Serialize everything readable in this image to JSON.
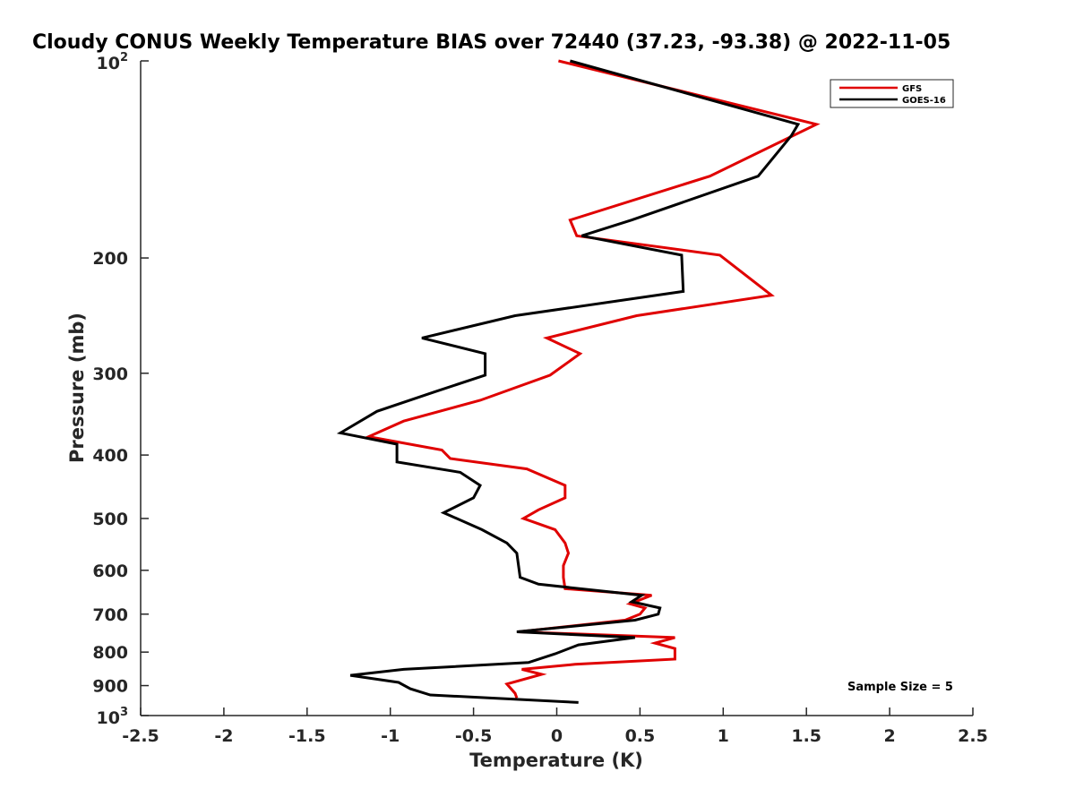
{
  "chart_data": {
    "type": "line",
    "title": "Cloudy CONUS Weekly Temperature BIAS over 72440 (37.23, -93.38) @ 2022-11-05",
    "xlabel": "Temperature (K)",
    "ylabel": "Pressure (mb)",
    "xlim": [
      -2.5,
      2.5
    ],
    "ylim": [
      100,
      1000
    ],
    "y_scale": "log",
    "y_reversed": true,
    "x_ticks": [
      -2.5,
      -2,
      -1.5,
      -1,
      -0.5,
      0,
      0.5,
      1,
      1.5,
      2,
      2.5
    ],
    "x_tick_labels": [
      "-2.5",
      "-2",
      "-1.5",
      "-1",
      "-0.5",
      "0",
      "0.5",
      "1",
      "1.5",
      "2",
      "2.5"
    ],
    "y_ticks": [
      200,
      300,
      400,
      500,
      600,
      700,
      800,
      900
    ],
    "y_tick_labels": [
      "200",
      "300",
      "400",
      "500",
      "600",
      "700",
      "800",
      "900"
    ],
    "y_tick_min_label": {
      "base": "10",
      "exp": "2"
    },
    "y_tick_max_label": {
      "base": "10",
      "exp": "3"
    },
    "legend_position": "top-right",
    "annotation": "Sample Size = 5",
    "grid": false,
    "series": [
      {
        "name": "GFS",
        "color": "#e00000",
        "points": [
          [
            0.01,
            100
          ],
          [
            1.56,
            125
          ],
          [
            0.92,
            150
          ],
          [
            0.08,
            175
          ],
          [
            0.12,
            185
          ],
          [
            0.98,
            198
          ],
          [
            1.29,
            228
          ],
          [
            0.48,
            245
          ],
          [
            -0.06,
            265
          ],
          [
            0.14,
            280
          ],
          [
            -0.04,
            302
          ],
          [
            -0.46,
            330
          ],
          [
            -0.92,
            355
          ],
          [
            -1.13,
            375
          ],
          [
            -0.69,
            393
          ],
          [
            -0.64,
            405
          ],
          [
            -0.18,
            420
          ],
          [
            0.05,
            445
          ],
          [
            0.05,
            465
          ],
          [
            -0.11,
            485
          ],
          [
            -0.2,
            500
          ],
          [
            -0.01,
            520
          ],
          [
            0.05,
            545
          ],
          [
            0.07,
            565
          ],
          [
            0.04,
            590
          ],
          [
            0.04,
            615
          ],
          [
            0.05,
            640
          ],
          [
            0.57,
            655
          ],
          [
            0.44,
            675
          ],
          [
            0.53,
            685
          ],
          [
            0.5,
            700
          ],
          [
            0.41,
            715
          ],
          [
            -0.23,
            745
          ],
          [
            0.71,
            760
          ],
          [
            0.59,
            775
          ],
          [
            0.71,
            790
          ],
          [
            0.71,
            820
          ],
          [
            0.11,
            835
          ],
          [
            -0.21,
            850
          ],
          [
            -0.09,
            865
          ],
          [
            -0.3,
            895
          ],
          [
            -0.25,
            925
          ],
          [
            -0.24,
            940
          ]
        ]
      },
      {
        "name": "GOES-16",
        "color": "#000000",
        "points": [
          [
            0.08,
            100
          ],
          [
            1.45,
            125
          ],
          [
            1.41,
            130
          ],
          [
            1.21,
            150
          ],
          [
            0.45,
            175
          ],
          [
            0.15,
            185
          ],
          [
            0.75,
            198
          ],
          [
            0.76,
            225
          ],
          [
            -0.25,
            245
          ],
          [
            -0.81,
            265
          ],
          [
            -0.43,
            280
          ],
          [
            -0.43,
            302
          ],
          [
            -0.73,
            320
          ],
          [
            -1.08,
            343
          ],
          [
            -1.3,
            370
          ],
          [
            -0.96,
            385
          ],
          [
            -0.96,
            410
          ],
          [
            -0.58,
            425
          ],
          [
            -0.46,
            445
          ],
          [
            -0.5,
            465
          ],
          [
            -0.68,
            490
          ],
          [
            -0.45,
            520
          ],
          [
            -0.3,
            545
          ],
          [
            -0.24,
            565
          ],
          [
            -0.23,
            590
          ],
          [
            -0.22,
            615
          ],
          [
            -0.11,
            630
          ],
          [
            0.51,
            655
          ],
          [
            0.45,
            670
          ],
          [
            0.62,
            685
          ],
          [
            0.61,
            700
          ],
          [
            0.47,
            715
          ],
          [
            -0.24,
            745
          ],
          [
            0.47,
            760
          ],
          [
            0.13,
            780
          ],
          [
            -0.01,
            805
          ],
          [
            -0.17,
            830
          ],
          [
            -0.92,
            850
          ],
          [
            -1.24,
            868
          ],
          [
            -0.95,
            890
          ],
          [
            -0.88,
            910
          ],
          [
            -0.76,
            930
          ],
          [
            0.13,
            955
          ]
        ]
      }
    ]
  }
}
